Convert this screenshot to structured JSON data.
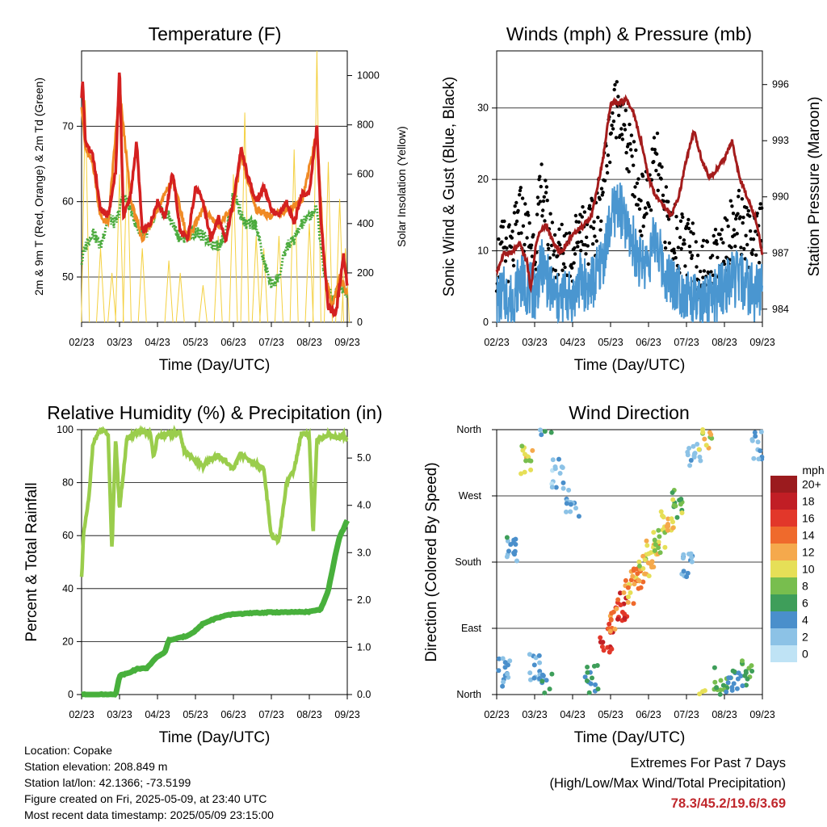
{
  "chart_data": [
    {
      "type": "line",
      "title": "Temperature (F)",
      "xlabel": "Time (Day/UTC)",
      "ylabel": "2m & 9m T (Red, Orange) & 2m Td (Green)",
      "y2label": "Solar Insolation (Yellow)",
      "x_ticks": [
        "02/23",
        "03/23",
        "04/23",
        "05/23",
        "06/23",
        "07/23",
        "08/23",
        "09/23"
      ],
      "ylim": [
        44,
        80
      ],
      "y_ticks": [
        50,
        60,
        70
      ],
      "y2lim": [
        0,
        1100
      ],
      "y2_ticks": [
        0,
        200,
        400,
        600,
        800,
        1000
      ],
      "grid": "horizontal",
      "x_months": [
        0,
        1,
        2,
        3,
        4,
        5,
        6,
        7
      ],
      "series": [
        {
          "name": "2m T",
          "color": "#d42020",
          "x": [
            0,
            0.03,
            0.1,
            0.3,
            0.5,
            0.7,
            0.9,
            1.0,
            1.1,
            1.3,
            1.45,
            1.6,
            1.8,
            2.0,
            2.2,
            2.4,
            2.6,
            2.8,
            3.0,
            3.2,
            3.4,
            3.6,
            3.8,
            4.0,
            4.2,
            4.4,
            4.6,
            4.8,
            5.0,
            5.2,
            5.4,
            5.6,
            5.8,
            6.0,
            6.2,
            6.3,
            6.4,
            6.5,
            6.7,
            6.9,
            7.0
          ],
          "y": [
            74,
            76,
            68,
            66,
            59,
            58,
            64,
            78,
            58,
            61,
            68,
            56,
            57,
            60,
            58,
            64,
            56,
            55,
            62,
            60,
            55,
            58,
            55,
            60,
            67,
            63,
            60,
            62,
            59,
            58,
            60,
            57,
            61,
            61,
            70,
            58,
            52,
            46,
            45,
            53,
            49
          ]
        },
        {
          "name": "9m T",
          "color": "#f08a24",
          "x": [
            0,
            0.1,
            0.3,
            0.5,
            0.7,
            1.0,
            1.3,
            1.6,
            2.0,
            2.4,
            2.8,
            3.2,
            3.6,
            4.0,
            4.2,
            4.6,
            5.0,
            5.4,
            5.8,
            6.2,
            6.4,
            6.6,
            6.8,
            7.0
          ],
          "y": [
            73,
            67,
            65,
            58,
            57,
            75,
            60,
            55,
            59,
            63,
            55,
            59,
            57,
            59,
            66,
            59,
            58,
            59,
            60,
            69,
            51,
            46,
            50,
            48
          ]
        },
        {
          "name": "2m Td",
          "color": "#4aaa3c",
          "x": [
            0,
            0.1,
            0.3,
            0.5,
            0.7,
            0.9,
            1.1,
            1.3,
            1.5,
            1.8,
            2.0,
            2.3,
            2.6,
            3.0,
            3.3,
            3.6,
            3.8,
            4.0,
            4.1,
            4.3,
            4.6,
            4.8,
            5.0,
            5.2,
            5.4,
            5.6,
            5.8,
            6.0,
            6.2,
            6.4,
            6.6,
            6.8,
            7.0
          ],
          "y": [
            52,
            54,
            56,
            54,
            58,
            57,
            61,
            59,
            56,
            56,
            59,
            58,
            55,
            56,
            55,
            54,
            56,
            61,
            60,
            57,
            57,
            52,
            49,
            50,
            54,
            55,
            57,
            58,
            59,
            50,
            47,
            49,
            48
          ]
        },
        {
          "name": "Solar Insolation",
          "color": "#f4d03f",
          "axis": "y2",
          "peak_days": [
            0.1,
            0.5,
            0.8,
            1.0,
            1.2,
            1.6,
            2.3,
            2.6,
            3.2,
            3.6,
            4.0,
            4.3,
            4.6,
            4.8,
            5.2,
            5.6,
            6.0,
            6.2,
            6.5,
            6.8,
            6.95
          ],
          "peak_values": [
            900,
            300,
            200,
            600,
            700,
            300,
            250,
            200,
            150,
            350,
            600,
            850,
            350,
            300,
            350,
            700,
            400,
            1100,
            650,
            500,
            300
          ]
        }
      ]
    },
    {
      "type": "scatter",
      "title": "Winds (mph) & Pressure (mb)",
      "xlabel": "Time (Day/UTC)",
      "ylabel": "Sonic Wind & Gust (Blue, Black)",
      "y2label": "Station Pressure (Maroon)",
      "x_ticks": [
        "02/23",
        "03/23",
        "04/23",
        "05/23",
        "06/23",
        "07/23",
        "08/23",
        "09/23"
      ],
      "ylim": [
        0,
        38
      ],
      "y_ticks": [
        0,
        10,
        20,
        30
      ],
      "y2lim": [
        983.3,
        997.8
      ],
      "y2_ticks": [
        984,
        987,
        990,
        993,
        996
      ],
      "grid": "horizontal",
      "series": [
        {
          "name": "Gust",
          "color": "#000000",
          "x": [
            0,
            0.2,
            0.4,
            0.6,
            0.8,
            1.0,
            1.2,
            1.4,
            1.6,
            1.8,
            2.0,
            2.2,
            2.4,
            2.6,
            2.8,
            3.0,
            3.2,
            3.4,
            3.6,
            3.8,
            4.0,
            4.2,
            4.4,
            4.6,
            4.8,
            5.0,
            5.2,
            5.4,
            5.6,
            5.8,
            6.0,
            6.2,
            6.4,
            6.6,
            6.8,
            7.0
          ],
          "y": [
            7,
            9,
            8,
            14,
            11,
            9,
            18,
            10,
            8,
            9,
            8,
            13,
            11,
            12,
            18,
            26,
            30,
            24,
            20,
            15,
            16,
            22,
            14,
            12,
            10,
            9,
            8,
            6,
            7,
            8,
            10,
            12,
            13,
            11,
            9,
            12
          ]
        },
        {
          "name": "Wind",
          "color": "#4a96d0",
          "x": [
            0,
            0.2,
            0.4,
            0.6,
            0.8,
            1.0,
            1.2,
            1.4,
            1.6,
            1.8,
            2.0,
            2.2,
            2.4,
            2.6,
            2.8,
            3.0,
            3.2,
            3.4,
            3.6,
            3.8,
            4.0,
            4.2,
            4.4,
            4.6,
            4.8,
            5.0,
            5.2,
            5.4,
            5.6,
            5.8,
            6.0,
            6.2,
            6.4,
            6.6,
            6.8,
            7.0
          ],
          "y": [
            3,
            4,
            3,
            6,
            5,
            4,
            8,
            5,
            3,
            4,
            3,
            6,
            5,
            6,
            9,
            14,
            17,
            13,
            11,
            8,
            9,
            12,
            7,
            6,
            5,
            4,
            3,
            2,
            3,
            4,
            5,
            6,
            6,
            5,
            4,
            5
          ]
        },
        {
          "name": "Station Pressure",
          "color": "#a41c1c",
          "axis": "y2",
          "x": [
            0,
            0.2,
            0.4,
            0.6,
            0.8,
            0.9,
            1.0,
            1.1,
            1.3,
            1.5,
            1.7,
            2.0,
            2.3,
            2.5,
            2.8,
            3.0,
            3.2,
            3.4,
            3.6,
            3.8,
            4.0,
            4.2,
            4.4,
            4.6,
            4.8,
            5.0,
            5.2,
            5.4,
            5.6,
            5.8,
            6.0,
            6.2,
            6.4,
            6.6,
            6.8,
            7.0
          ],
          "y": [
            986,
            987,
            987,
            987.5,
            986.5,
            985,
            987,
            988,
            988.5,
            987.5,
            987,
            988,
            988.5,
            989,
            992,
            995,
            995,
            995.2,
            994.5,
            993,
            991,
            990,
            989.5,
            989,
            990,
            992,
            993.5,
            992,
            991,
            991.5,
            992,
            993,
            991,
            990,
            989,
            987
          ]
        }
      ]
    },
    {
      "type": "line",
      "title": "Relative Humidity (%) & Precipitation (in)",
      "xlabel": "Time (Day/UTC)",
      "ylabel": "Percent & Total Rainfall",
      "x_ticks": [
        "02/23",
        "03/23",
        "04/23",
        "05/23",
        "06/23",
        "07/23",
        "08/23",
        "09/23"
      ],
      "ylim": [
        0,
        100
      ],
      "y_ticks": [
        0,
        20,
        40,
        60,
        80,
        100
      ],
      "y2lim": [
        0,
        5.6
      ],
      "y2_ticks": [
        "0.0",
        "1.0",
        "2.0",
        "3.0",
        "4.0",
        "5.0"
      ],
      "grid": "horizontal",
      "series": [
        {
          "name": "Relative Humidity",
          "color": "#9acd4c",
          "x": [
            0,
            0.05,
            0.2,
            0.3,
            0.5,
            0.7,
            0.8,
            0.9,
            1.0,
            1.2,
            1.5,
            1.8,
            1.9,
            2.0,
            2.2,
            2.6,
            2.7,
            3.0,
            3.2,
            3.4,
            3.6,
            3.8,
            4.0,
            4.2,
            4.4,
            4.6,
            4.8,
            5.0,
            5.2,
            5.4,
            5.6,
            5.8,
            6.0,
            6.1,
            6.2,
            6.5,
            6.8,
            6.9,
            7.0
          ],
          "y": [
            44,
            60,
            75,
            95,
            100,
            98,
            55,
            97,
            70,
            97,
            99,
            99,
            90,
            97,
            98,
            99,
            92,
            88,
            86,
            89,
            90,
            88,
            85,
            91,
            88,
            87,
            85,
            60,
            58,
            80,
            85,
            99,
            98,
            60,
            96,
            98,
            97,
            98,
            96
          ]
        },
        {
          "name": "Total Rainfall",
          "color": "#48b03c",
          "axis": "y2",
          "x": [
            0,
            0.9,
            1.0,
            1.2,
            1.5,
            1.7,
            2.0,
            2.2,
            2.3,
            2.6,
            2.8,
            3.0,
            3.2,
            3.5,
            3.7,
            4.0,
            4.5,
            5.0,
            5.5,
            6.0,
            6.3,
            6.5,
            6.6,
            6.7,
            6.8,
            6.9,
            7.0
          ],
          "y": [
            0,
            0,
            0.4,
            0.45,
            0.55,
            0.55,
            0.8,
            0.9,
            1.15,
            1.2,
            1.25,
            1.35,
            1.5,
            1.6,
            1.65,
            1.7,
            1.72,
            1.74,
            1.74,
            1.75,
            1.8,
            2.2,
            2.6,
            3.0,
            3.35,
            3.5,
            3.69
          ]
        }
      ]
    },
    {
      "type": "scatter",
      "title": "Wind Direction",
      "xlabel": "Time (Day/UTC)",
      "ylabel": "Direction (Colored By Speed)",
      "x_ticks": [
        "02/23",
        "03/23",
        "04/23",
        "05/23",
        "06/23",
        "07/23",
        "08/23",
        "09/23"
      ],
      "y_ticks": [
        "North",
        "East",
        "South",
        "West",
        "North"
      ],
      "ylim": [
        0,
        360
      ],
      "grid": "horizontal",
      "colorbar": {
        "unit": "mph",
        "labels": [
          "0",
          "2",
          "4",
          "6",
          "8",
          "10",
          "12",
          "14",
          "16",
          "18",
          "20+"
        ],
        "colors": [
          "#bfe3f5",
          "#8cc2e6",
          "#4a8fcb",
          "#3e9e5a",
          "#78be4e",
          "#e6df57",
          "#f5a94c",
          "#ef6a2c",
          "#e2372a",
          "#c11e25",
          "#9b1b1e"
        ]
      },
      "points": [
        {
          "x": 0.2,
          "y": 30,
          "s": 3
        },
        {
          "x": 0.4,
          "y": 200,
          "s": 4
        },
        {
          "x": 0.8,
          "y": 320,
          "s": 10
        },
        {
          "x": 1.0,
          "y": 40,
          "s": 3
        },
        {
          "x": 1.3,
          "y": 10,
          "s": 4
        },
        {
          "x": 1.6,
          "y": 300,
          "s": 2
        },
        {
          "x": 2.0,
          "y": 260,
          "s": 3
        },
        {
          "x": 2.5,
          "y": 20,
          "s": 5
        },
        {
          "x": 2.9,
          "y": 75,
          "s": 17
        },
        {
          "x": 3.1,
          "y": 100,
          "s": 14
        },
        {
          "x": 3.3,
          "y": 120,
          "s": 16
        },
        {
          "x": 3.5,
          "y": 140,
          "s": 12
        },
        {
          "x": 3.7,
          "y": 160,
          "s": 13
        },
        {
          "x": 3.9,
          "y": 180,
          "s": 10
        },
        {
          "x": 4.1,
          "y": 190,
          "s": 12
        },
        {
          "x": 4.3,
          "y": 210,
          "s": 9
        },
        {
          "x": 4.5,
          "y": 230,
          "s": 11
        },
        {
          "x": 4.8,
          "y": 260,
          "s": 8
        },
        {
          "x": 5.0,
          "y": 180,
          "s": 3
        },
        {
          "x": 5.2,
          "y": 330,
          "s": 2
        },
        {
          "x": 5.5,
          "y": 350,
          "s": 10
        },
        {
          "x": 5.9,
          "y": 20,
          "s": 7
        },
        {
          "x": 6.2,
          "y": 15,
          "s": 5
        },
        {
          "x": 6.6,
          "y": 30,
          "s": 6
        },
        {
          "x": 6.9,
          "y": 340,
          "s": 3
        }
      ]
    }
  ],
  "info": {
    "location": "Location: Copake",
    "elevation": "Station elevation: 208.849 m",
    "latlon": "Station lat/lon: 42.1366; -73.5199",
    "created": "Figure created on Fri, 2025-05-09, at 23:40 UTC",
    "recent": "Most recent data timestamp: 2025/05/09 23:15:00"
  },
  "extremes": {
    "line1": "Extremes For Past 7 Days",
    "line2": "(High/Low/Max Wind/Total Precipitation)",
    "values": "78.3/45.2/19.6/3.69"
  }
}
